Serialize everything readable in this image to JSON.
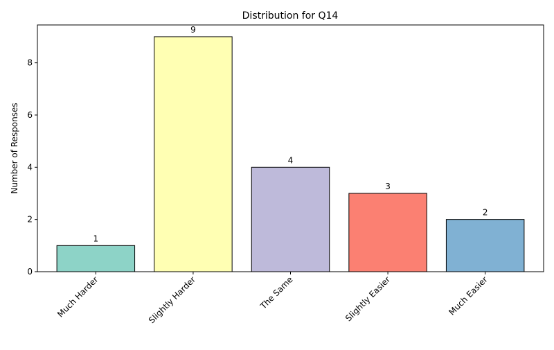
{
  "chart_data": {
    "type": "bar",
    "title": "Distribution for Q14",
    "xlabel": "",
    "ylabel": "Number of Responses",
    "categories": [
      "Much Harder",
      "Slightly Harder",
      "The Same",
      "Slightly Easier",
      "Much Easier"
    ],
    "values": [
      1,
      9,
      4,
      3,
      2
    ],
    "colors": [
      "#8dd3c7",
      "#ffffb3",
      "#bebada",
      "#fb8072",
      "#80b1d3"
    ],
    "edge_color": "#000000",
    "ylim": [
      0,
      9.45
    ],
    "yticks": [
      0,
      2,
      4,
      6,
      8
    ],
    "grid": false,
    "legend": "none"
  }
}
